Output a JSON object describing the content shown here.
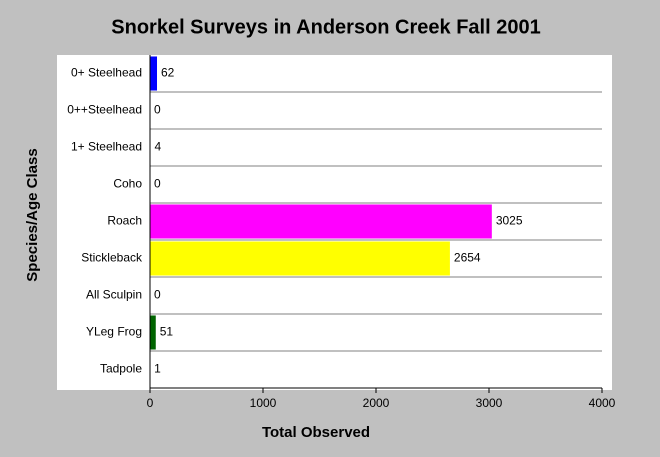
{
  "chart_data": {
    "type": "bar",
    "orientation": "horizontal",
    "title": "Snorkel Surveys in Anderson Creek Fall 2001",
    "xlabel": "Total Observed",
    "ylabel": "Species/Age Class",
    "categories": [
      "0+ Steelhead",
      "0++Steelhead",
      "1+ Steelhead",
      "Coho",
      "Roach",
      "Stickleback",
      "All Sculpin",
      "YLeg Frog",
      "Tadpole"
    ],
    "values": [
      62,
      0,
      4,
      0,
      3025,
      2654,
      0,
      51,
      1
    ],
    "colors": [
      "#0000ff",
      "#808080",
      "#008080",
      "#808080",
      "#ff00ff",
      "#ffff00",
      "#808080",
      "#006400",
      "#808080"
    ],
    "xlim": [
      0,
      4000
    ],
    "xticks": [
      0,
      1000,
      2000,
      3000,
      4000
    ]
  }
}
